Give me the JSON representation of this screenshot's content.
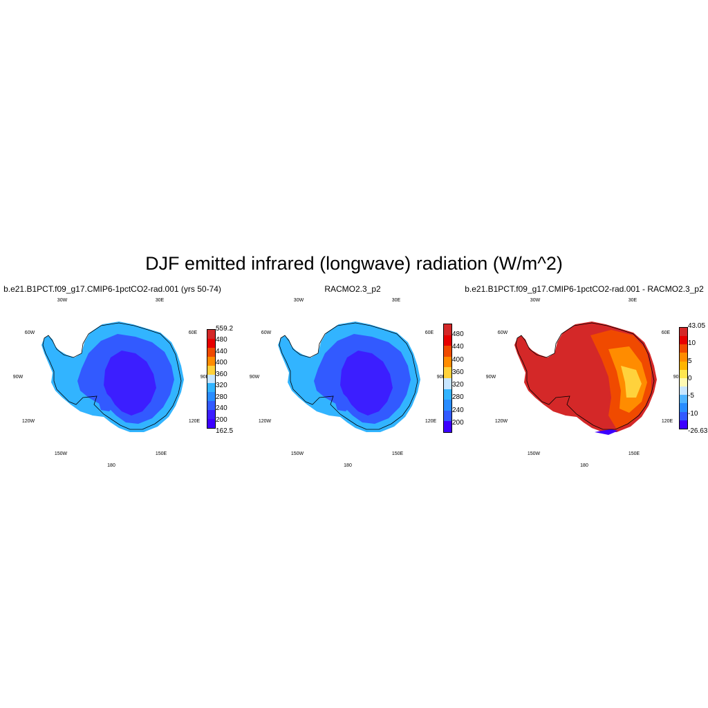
{
  "figure": {
    "title": "DJF emitted infrared (longwave) radiation (W/m^2)"
  },
  "panels": [
    {
      "title": "b.e21.B1PCT.f09_g17.CMIP6-1pctCO2-rad.001 (yrs 50-74)",
      "colorbar": {
        "labels": [
          "559.2",
          "480",
          "440",
          "400",
          "360",
          "320",
          "280",
          "240",
          "200",
          "162.5"
        ],
        "colors": [
          "#d42828",
          "#e60000",
          "#f04a00",
          "#ff8c00",
          "#ffd23c",
          "#c8e6ff",
          "#32b4ff",
          "#288cff",
          "#325aff",
          "#3c1eff",
          "#3c00ff"
        ]
      }
    },
    {
      "title": "RACMO2.3_p2",
      "colorbar": {
        "labels": [
          "480",
          "440",
          "400",
          "360",
          "320",
          "280",
          "240",
          "200"
        ],
        "colors": [
          "#d42828",
          "#e60000",
          "#f04a00",
          "#ff8c00",
          "#ffd23c",
          "#c8e6ff",
          "#32b4ff",
          "#288cff",
          "#325aff",
          "#3c00ff"
        ]
      }
    },
    {
      "title": "b.e21.B1PCT.f09_g17.CMIP6-1pctCO2-rad.001 - RACMO2.3_p2",
      "colorbar": {
        "labels": [
          "43.05",
          "10",
          "5",
          "0",
          "-5",
          "-10",
          "-26.63"
        ],
        "colors": [
          "#d42828",
          "#e60000",
          "#f04a00",
          "#ff8c00",
          "#ffb400",
          "#ffe650",
          "#fffab4",
          "#c8e6ff",
          "#50b4ff",
          "#288cff",
          "#325aff",
          "#3c00ff"
        ]
      }
    }
  ],
  "longitude_labels": [
    "30W",
    "30E",
    "60W",
    "60E",
    "90W",
    "90E",
    "120W",
    "120E",
    "150W",
    "150E",
    "180"
  ],
  "map_colors": {
    "ocean": "#ffffff",
    "coastline": "#000000",
    "abs_outer": "#32b4ff",
    "abs_mid": "#325aff",
    "abs_inner": "#3c1eff",
    "diff_base": "#d42828",
    "diff_warm": "#f04a00",
    "diff_hot": "#ff8c00",
    "diff_light": "#ffd23c",
    "diff_edge": "#3c00ff"
  }
}
